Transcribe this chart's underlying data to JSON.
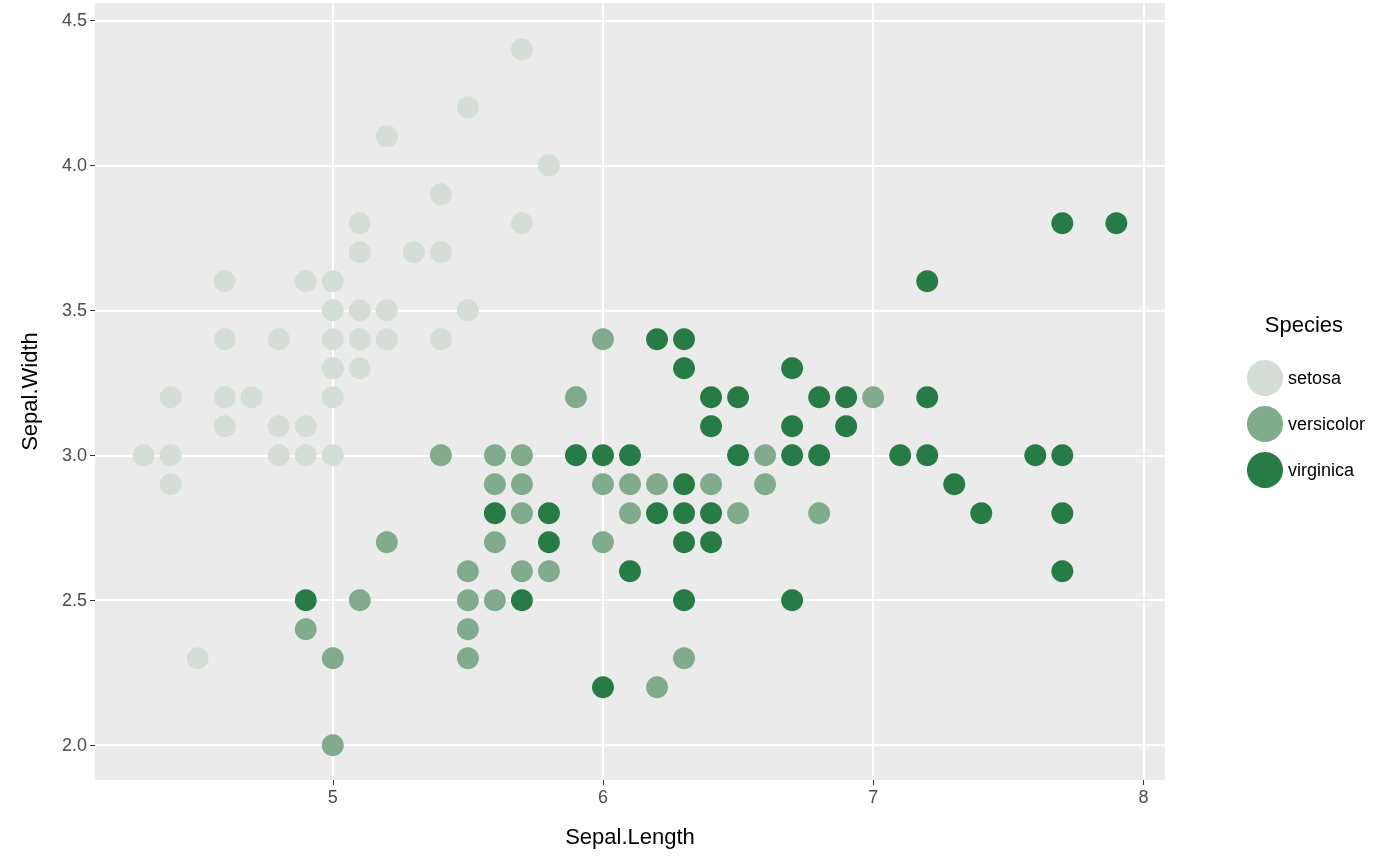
{
  "chart_data": {
    "type": "scatter",
    "xlabel": "Sepal.Length",
    "ylabel": "Sepal.Width",
    "legend_title": "Species",
    "legend": "right",
    "grid": true,
    "marker": "circle",
    "xlim": [
      4.12,
      8.08
    ],
    "xticks": [
      5,
      6,
      7,
      8
    ],
    "ylim": [
      1.88,
      4.56
    ],
    "yticks": [
      {
        "value": 2,
        "label": "2.0"
      },
      {
        "value": 2.5,
        "label": "2.5"
      },
      {
        "value": 3,
        "label": "3.0"
      },
      {
        "value": 3.5,
        "label": "3.5"
      },
      {
        "value": 4,
        "label": "4.0"
      },
      {
        "value": 4.5,
        "label": "4.5"
      }
    ],
    "series": [
      {
        "name": "setosa",
        "color": "#d5ddd7",
        "x": [
          5.1,
          4.9,
          4.7,
          4.6,
          5.0,
          5.4,
          4.6,
          5.0,
          4.4,
          4.9,
          5.4,
          4.8,
          4.8,
          4.3,
          5.8,
          5.7,
          5.7,
          5.1,
          5.4,
          5.1,
          4.6,
          5.1,
          5.0,
          5.2,
          5.2,
          4.8,
          5.2,
          5.5,
          5.0,
          5.5,
          4.9,
          4.4,
          5.1,
          5.0,
          4.5,
          4.4,
          4.6,
          5.3,
          5.0
        ],
        "values": [
          3.5,
          3.0,
          3.2,
          3.1,
          3.6,
          3.9,
          3.4,
          3.4,
          2.9,
          3.1,
          3.7,
          3.4,
          3.0,
          3.0,
          4.0,
          4.4,
          3.8,
          3.8,
          3.4,
          3.7,
          3.6,
          3.3,
          3.0,
          3.5,
          3.4,
          3.1,
          4.1,
          4.2,
          3.2,
          3.5,
          3.6,
          3.0,
          3.4,
          3.5,
          2.3,
          3.2,
          3.2,
          3.7,
          3.3
        ]
      },
      {
        "name": "versicolor",
        "color": "#80ab8c",
        "x": [
          7.0,
          5.5,
          6.5,
          5.7,
          4.9,
          6.6,
          5.2,
          5.0,
          6.1,
          5.6,
          5.6,
          6.2,
          5.6,
          5.9,
          6.1,
          6.4,
          6.6,
          6.8,
          6.0,
          5.7,
          5.5,
          6.0,
          5.4,
          6.0,
          6.3,
          5.5,
          5.5,
          5.8,
          5.0,
          5.6,
          5.7,
          5.7,
          6.2,
          5.1
        ],
        "values": [
          3.2,
          2.3,
          2.8,
          2.8,
          2.4,
          2.9,
          2.7,
          2.0,
          2.9,
          2.9,
          3.0,
          2.2,
          2.5,
          3.2,
          2.8,
          2.9,
          3.0,
          2.8,
          2.9,
          2.6,
          2.4,
          2.7,
          3.0,
          3.4,
          2.3,
          2.5,
          2.6,
          2.6,
          2.3,
          2.7,
          3.0,
          2.9,
          2.9,
          2.5
        ]
      },
      {
        "name": "virginica",
        "color": "#277c45",
        "x": [
          6.3,
          5.8,
          7.1,
          6.3,
          6.5,
          7.6,
          4.9,
          7.3,
          6.7,
          7.2,
          6.5,
          6.4,
          6.8,
          5.7,
          5.8,
          6.4,
          7.7,
          7.7,
          6.0,
          6.9,
          5.6,
          7.7,
          6.3,
          6.7,
          7.2,
          6.2,
          6.1,
          6.4,
          7.2,
          7.4,
          7.9,
          6.3,
          6.1,
          7.7,
          6.3,
          6.4,
          6.0,
          6.9,
          6.7,
          6.8,
          6.7,
          6.3,
          6.2,
          5.9
        ],
        "values": [
          3.3,
          2.7,
          3.0,
          2.9,
          3.0,
          3.0,
          2.5,
          2.9,
          2.5,
          3.6,
          3.2,
          2.7,
          3.0,
          2.5,
          2.8,
          3.2,
          3.8,
          2.6,
          2.2,
          3.2,
          2.8,
          2.8,
          2.7,
          3.3,
          3.2,
          2.8,
          3.0,
          2.8,
          3.0,
          2.8,
          3.8,
          2.8,
          2.6,
          3.0,
          3.4,
          3.1,
          3.0,
          3.1,
          3.1,
          3.2,
          3.0,
          2.5,
          3.4,
          3.0
        ]
      }
    ]
  }
}
